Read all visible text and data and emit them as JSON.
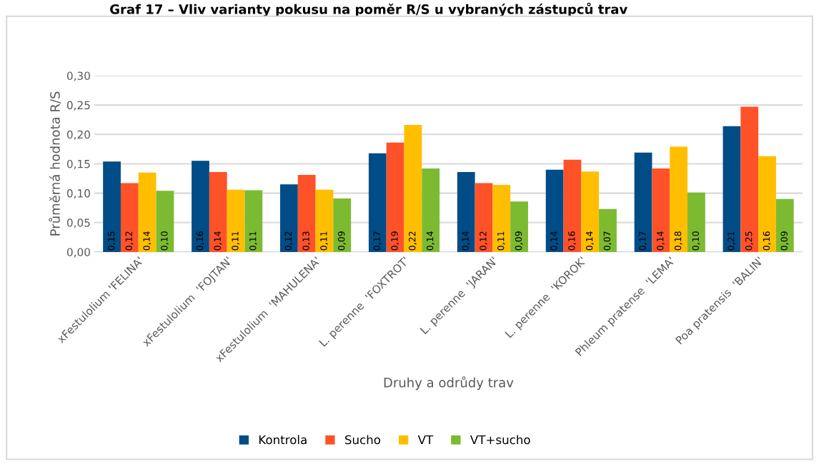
{
  "chart_data": {
    "type": "bar",
    "title": "Graf 17 – Vliv varianty pokusu na poměr R/S u vybraných zástupců trav",
    "xlabel": "Druhy a odrůdy trav",
    "ylabel": "Průměrná hodnota R/S",
    "categories": [
      "xFestulolium 'FELINA'",
      "xFestulolium  'FOJTAN'",
      "xFestulolium  'MAHULENA'",
      "L. perenne  'FOXTROT'",
      "L. perenne  'JARAN'",
      "L. perenne  'KOROK'",
      "Phleum pratense  'LEMA'",
      "Poa pratensis  'BALIN'"
    ],
    "series": [
      {
        "name": "Kontrola",
        "color": "#004c86",
        "values": [
          0.154,
          0.155,
          0.115,
          0.168,
          0.136,
          0.14,
          0.169,
          0.214
        ],
        "value_labels": [
          "0,15",
          "0,16",
          "0,12",
          "0,17",
          "0,14",
          "0,14",
          "0,17",
          "0,21"
        ]
      },
      {
        "name": "Sucho",
        "color": "#ff5228",
        "values": [
          0.117,
          0.136,
          0.131,
          0.186,
          0.117,
          0.157,
          0.142,
          0.247
        ],
        "value_labels": [
          "0,12",
          "0,14",
          "0,13",
          "0,19",
          "0,12",
          "0,16",
          "0,14",
          "0,25"
        ]
      },
      {
        "name": "VT",
        "color": "#ffbf00",
        "values": [
          0.135,
          0.106,
          0.106,
          0.216,
          0.114,
          0.137,
          0.179,
          0.163
        ],
        "value_labels": [
          "0,14",
          "0,11",
          "0,11",
          "0,22",
          "0,11",
          "0,14",
          "0,18",
          "0,16"
        ]
      },
      {
        "name": "VT+sucho",
        "color": "#7cbb31",
        "values": [
          0.104,
          0.105,
          0.091,
          0.142,
          0.086,
          0.073,
          0.101,
          0.09
        ],
        "value_labels": [
          "0,10",
          "0,11",
          "0,09",
          "0,14",
          "0,09",
          "0,07",
          "0,10",
          "0,09"
        ]
      }
    ],
    "ylim": [
      0,
      0.3
    ],
    "yticks": [
      {
        "value": 0,
        "label": "0,00"
      },
      {
        "value": 0.05,
        "label": "0,05"
      },
      {
        "value": 0.1,
        "label": "0,10"
      },
      {
        "value": 0.15,
        "label": "0,15"
      },
      {
        "value": 0.2,
        "label": "0,20"
      },
      {
        "value": 0.25,
        "label": "0,25"
      },
      {
        "value": 0.3,
        "label": "0,30"
      }
    ],
    "grid": "y",
    "legend": "bottom"
  }
}
